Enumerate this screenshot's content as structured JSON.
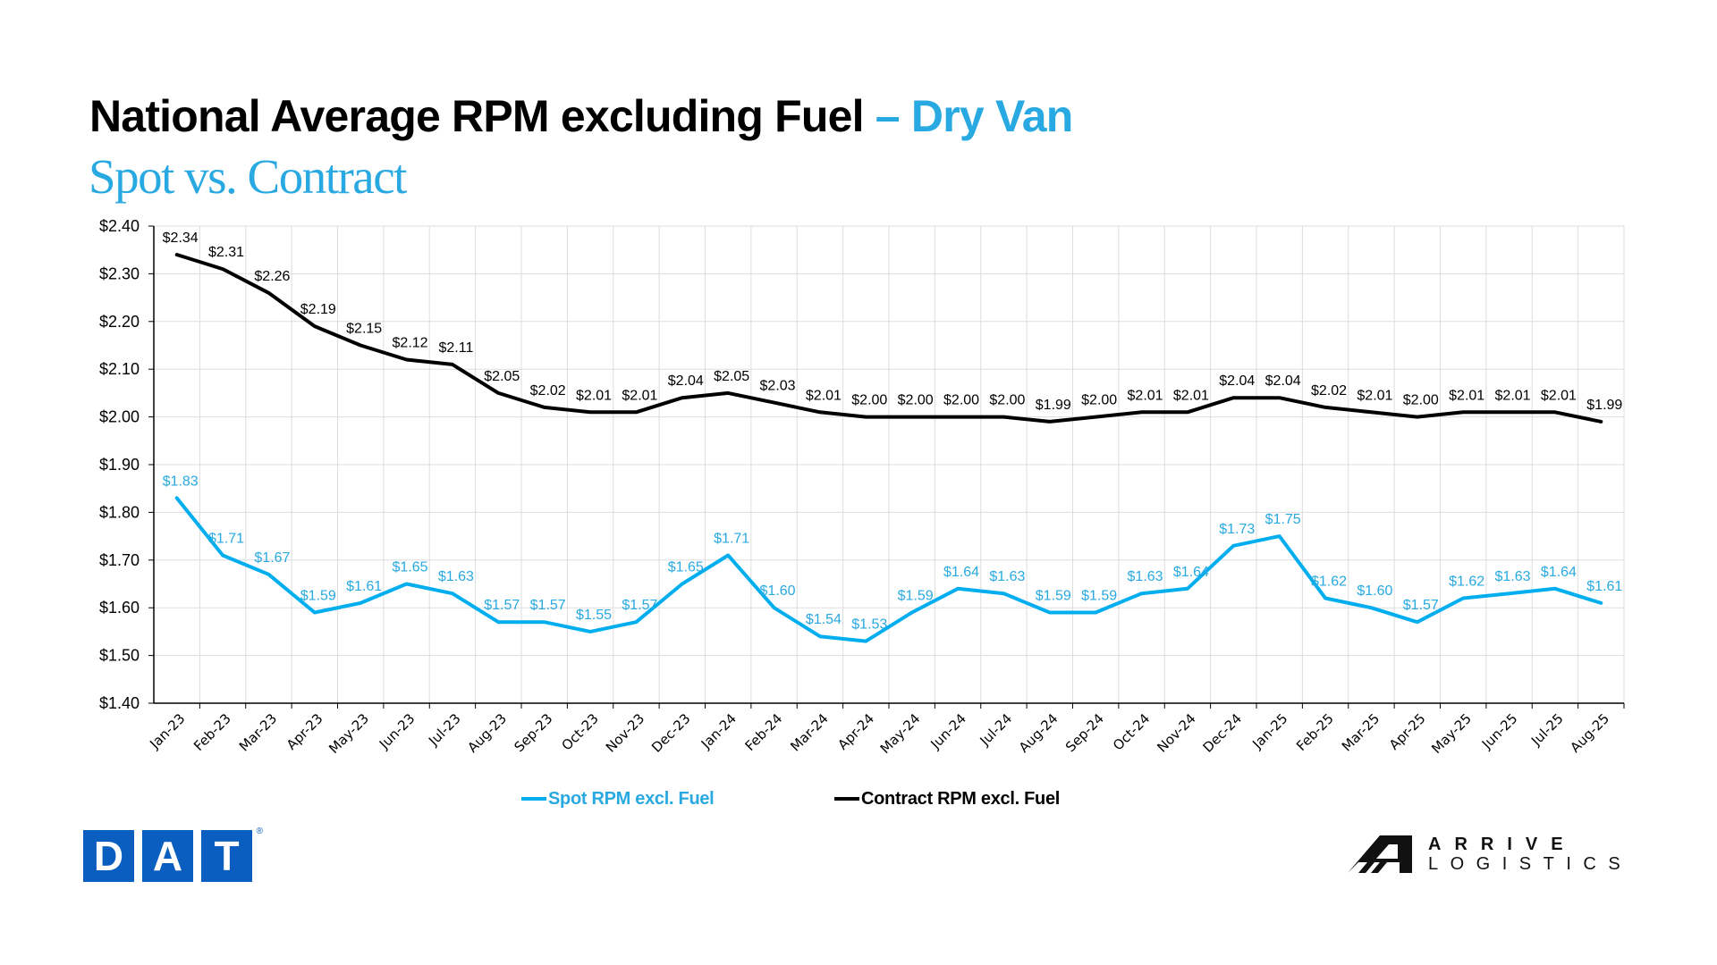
{
  "header": {
    "title_main": "National Average RPM excluding Fuel",
    "title_accent": "– Dry Van",
    "subtitle": "Spot vs. Contract"
  },
  "colors": {
    "spot": "#00AEEF",
    "spot_label": "#29A9E1",
    "contract": "#000000",
    "accent": "#29A9E1",
    "grid": "#DDDDDD",
    "dat_blue": "#0A5EC0"
  },
  "chart_data": {
    "type": "line",
    "title": "National Average RPM excluding Fuel – Dry Van",
    "subtitle": "Spot vs. Contract",
    "xlabel": "",
    "ylabel": "",
    "ylim": [
      1.4,
      2.4
    ],
    "ytick_step": 0.1,
    "yticks": [
      "$1.40",
      "$1.50",
      "$1.60",
      "$1.70",
      "$1.80",
      "$1.90",
      "$2.00",
      "$2.10",
      "$2.20",
      "$2.30",
      "$2.40"
    ],
    "grid": true,
    "legend_position": "bottom-center",
    "categories": [
      "Jan-23",
      "Feb-23",
      "Mar-23",
      "Apr-23",
      "May-23",
      "Jun-23",
      "Jul-23",
      "Aug-23",
      "Sep-23",
      "Oct-23",
      "Nov-23",
      "Dec-23",
      "Jan-24",
      "Feb-24",
      "Mar-24",
      "Apr-24",
      "May-24",
      "Jun-24",
      "Jul-24",
      "Aug-24",
      "Sep-24",
      "Oct-24",
      "Nov-24",
      "Dec-24",
      "Jan-25",
      "Feb-25",
      "Mar-25",
      "Apr-25",
      "May-25",
      "Jun-25",
      "Jul-25",
      "Aug-25"
    ],
    "series": [
      {
        "name": "Spot RPM excl. Fuel",
        "color": "#00AEEF",
        "values": [
          1.83,
          1.71,
          1.67,
          1.59,
          1.61,
          1.65,
          1.63,
          1.57,
          1.57,
          1.55,
          1.57,
          1.65,
          1.71,
          1.6,
          1.54,
          1.53,
          1.59,
          1.64,
          1.63,
          1.59,
          1.59,
          1.63,
          1.64,
          1.73,
          1.75,
          1.62,
          1.6,
          1.57,
          1.62,
          1.63,
          1.64,
          1.61
        ]
      },
      {
        "name": "Contract RPM excl. Fuel",
        "color": "#000000",
        "values": [
          2.34,
          2.31,
          2.26,
          2.19,
          2.15,
          2.12,
          2.11,
          2.05,
          2.02,
          2.01,
          2.01,
          2.04,
          2.05,
          2.03,
          2.01,
          2.0,
          2.0,
          2.0,
          2.0,
          1.99,
          2.0,
          2.01,
          2.01,
          2.04,
          2.04,
          2.02,
          2.01,
          2.0,
          2.01,
          2.01,
          2.01,
          1.99
        ]
      }
    ]
  },
  "legend": {
    "spot_label": "Spot RPM excl. Fuel",
    "contract_label": "Contract RPM excl. Fuel"
  },
  "logos": {
    "dat": [
      "D",
      "A",
      "T"
    ],
    "dat_reg": "®",
    "arrive_line1": "ARRIVE",
    "arrive_line2": "LOGISTICS"
  }
}
